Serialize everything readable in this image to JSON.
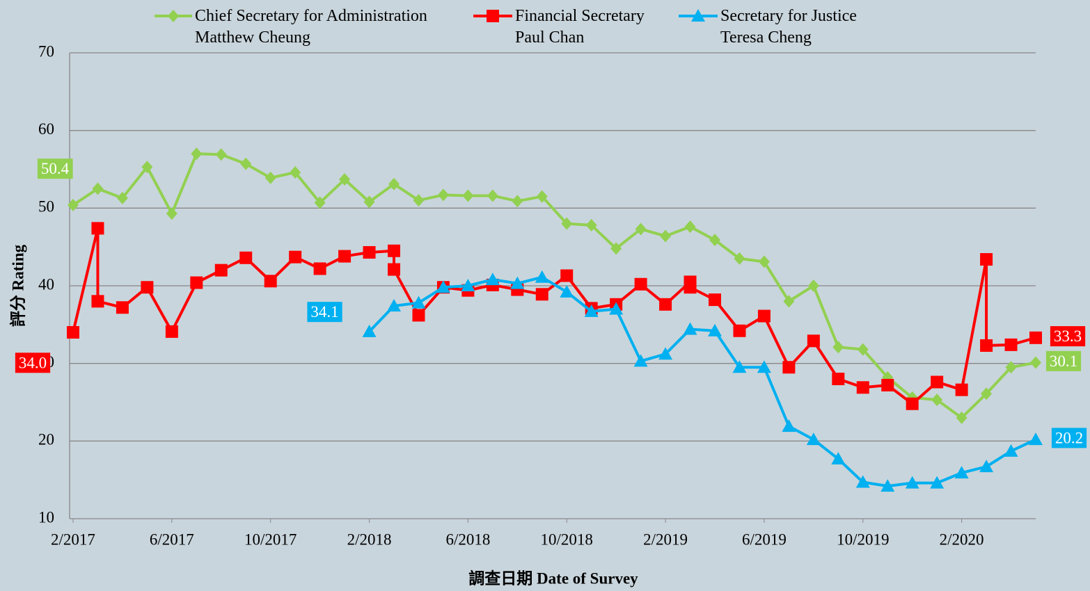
{
  "chart_data": {
    "type": "line",
    "xlabel": "調查日期 Date of Survey",
    "ylabel": "評分 Rating",
    "xlim": [
      "2/2017",
      "5/2020"
    ],
    "xticks": [
      "2/2017",
      "6/2017",
      "10/2017",
      "2/2018",
      "6/2018",
      "10/2018",
      "2/2019",
      "6/2019",
      "10/2019",
      "2/2020"
    ],
    "ylim": [
      10,
      70
    ],
    "yticks": [
      10,
      20,
      30,
      40,
      50,
      60,
      70
    ],
    "grid": true,
    "legend": "top",
    "series": [
      {
        "name": "Chief Secretary for Administration\nMatthew Cheung",
        "color": "#92d050",
        "marker": "diamond",
        "x": [
          "2/2017",
          "3/2017",
          "4/2017",
          "5/2017",
          "6/2017",
          "7/2017",
          "8/2017",
          "9/2017",
          "10/2017",
          "11/2017",
          "12/2017",
          "1/2018",
          "2/2018",
          "3/2018",
          "4/2018",
          "5/2018",
          "6/2018",
          "7/2018",
          "8/2018",
          "9/2018",
          "10/2018",
          "11/2018",
          "12/2018",
          "1/2019",
          "2/2019",
          "3/2019",
          "4/2019",
          "5/2019",
          "6/2019",
          "7/2019",
          "8/2019",
          "9/2019",
          "10/2019",
          "11/2019",
          "12/2019",
          "1/2020",
          "2/2020",
          "3/2020",
          "4/2020",
          "5/2020"
        ],
        "values": [
          50.4,
          52.5,
          51.3,
          55.3,
          49.3,
          57.0,
          56.9,
          55.7,
          53.9,
          54.6,
          50.7,
          53.7,
          50.8,
          53.1,
          51.0,
          51.7,
          51.6,
          51.6,
          50.9,
          51.5,
          48.0,
          47.8,
          44.8,
          47.3,
          46.4,
          47.6,
          45.9,
          43.5,
          43.1,
          38.0,
          40.0,
          32.1,
          31.8,
          28.2,
          25.6,
          25.3,
          23.0,
          26.1,
          29.5,
          30.1
        ],
        "value_labels": [
          "50.4",
          null,
          null,
          null,
          null,
          null,
          null,
          null,
          null,
          null,
          null,
          null,
          null,
          null,
          null,
          null,
          null,
          null,
          null,
          null,
          null,
          null,
          null,
          null,
          null,
          null,
          null,
          null,
          null,
          null,
          null,
          null,
          null,
          null,
          null,
          null,
          null,
          null,
          null,
          "30.1"
        ]
      },
      {
        "name": "Financial Secretary\nPaul Chan",
        "color": "#ff0000",
        "marker": "square",
        "x": [
          "2/2017",
          "3/2017",
          "3/2017",
          "4/2017",
          "5/2017",
          "6/2017",
          "7/2017",
          "8/2017",
          "9/2017",
          "10/2017",
          "11/2017",
          "12/2017",
          "1/2018",
          "2/2018",
          "3/2018",
          "3/2018",
          "4/2018",
          "5/2018",
          "6/2018",
          "7/2018",
          "8/2018",
          "9/2018",
          "10/2018",
          "11/2018",
          "12/2018",
          "1/2019",
          "2/2019",
          "3/2019",
          "3/2019",
          "4/2019",
          "5/2019",
          "6/2019",
          "7/2019",
          "8/2019",
          "9/2019",
          "10/2019",
          "11/2019",
          "12/2019",
          "1/2020",
          "2/2020",
          "3/2020",
          "3/2020",
          "4/2020",
          "5/2020"
        ],
        "values": [
          34.0,
          47.4,
          38.0,
          37.2,
          39.8,
          34.1,
          40.4,
          42.0,
          43.6,
          40.6,
          43.7,
          42.2,
          43.8,
          44.3,
          44.5,
          42.1,
          36.2,
          39.8,
          39.4,
          40.1,
          39.5,
          38.9,
          41.3,
          37.1,
          37.6,
          40.2,
          37.6,
          40.5,
          39.8,
          38.2,
          34.2,
          36.1,
          29.5,
          32.9,
          28.0,
          26.9,
          27.2,
          24.8,
          27.6,
          26.6,
          43.4,
          32.3,
          32.4,
          33.3
        ],
        "value_labels": [
          "34.0",
          null,
          null,
          null,
          null,
          null,
          null,
          null,
          null,
          null,
          null,
          null,
          null,
          null,
          null,
          null,
          null,
          null,
          null,
          null,
          null,
          null,
          null,
          null,
          null,
          null,
          null,
          null,
          null,
          null,
          null,
          null,
          null,
          null,
          null,
          null,
          null,
          null,
          null,
          null,
          null,
          null,
          null,
          "33.3"
        ]
      },
      {
        "name": "Secretary for Justice\nTeresa Cheng",
        "color": "#00b0f0",
        "marker": "triangle",
        "x": [
          "2/2018",
          "3/2018",
          "4/2018",
          "5/2018",
          "6/2018",
          "7/2018",
          "8/2018",
          "9/2018",
          "10/2018",
          "11/2018",
          "12/2018",
          "1/2019",
          "2/2019",
          "3/2019",
          "4/2019",
          "5/2019",
          "6/2019",
          "7/2019",
          "8/2019",
          "9/2019",
          "10/2019",
          "11/2019",
          "12/2019",
          "1/2020",
          "2/2020",
          "3/2020",
          "4/2020",
          "5/2020"
        ],
        "values": [
          34.1,
          37.4,
          37.8,
          39.8,
          40.0,
          40.8,
          40.3,
          41.1,
          39.2,
          36.7,
          37.0,
          30.3,
          31.2,
          34.4,
          34.2,
          29.5,
          29.5,
          21.9,
          20.2,
          17.7,
          14.7,
          14.2,
          14.6,
          14.6,
          15.9,
          16.7,
          18.7,
          20.2
        ],
        "value_labels": [
          "34.1",
          null,
          null,
          null,
          null,
          null,
          null,
          null,
          null,
          null,
          null,
          null,
          null,
          null,
          null,
          null,
          null,
          null,
          null,
          null,
          null,
          null,
          null,
          null,
          null,
          null,
          null,
          "20.2"
        ]
      }
    ]
  }
}
